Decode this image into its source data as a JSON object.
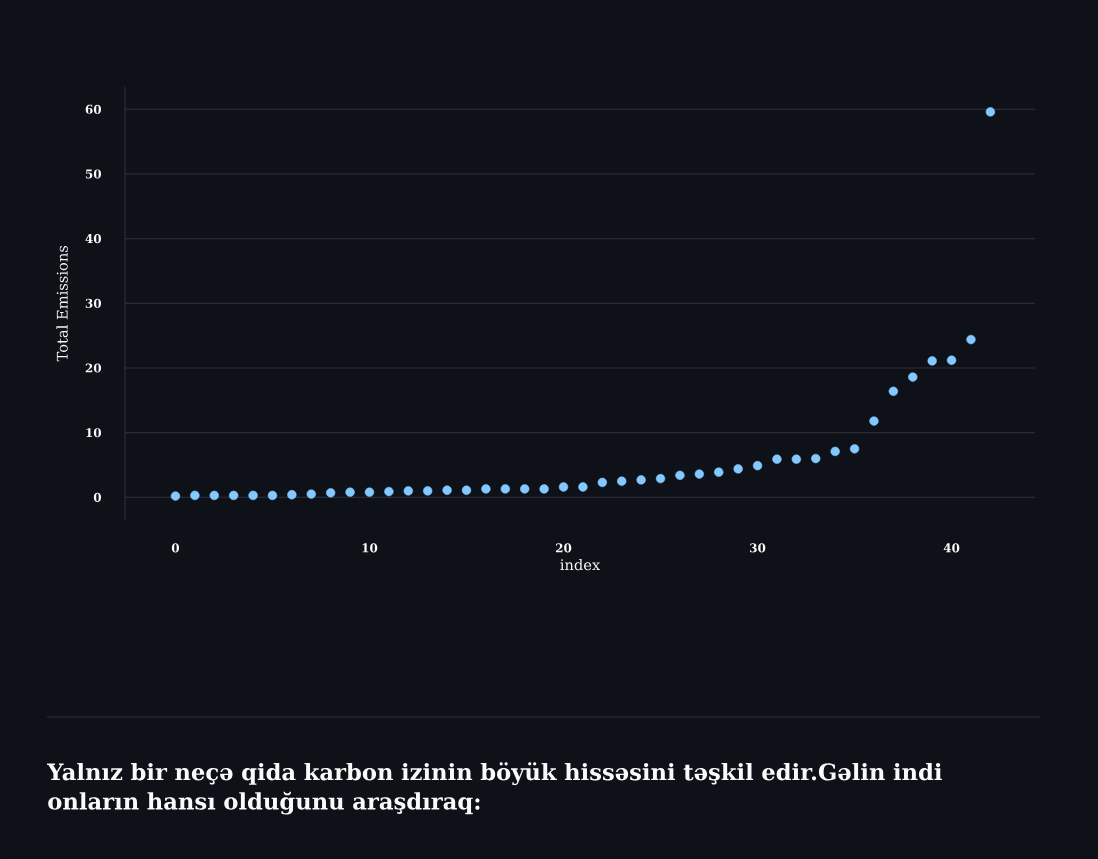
{
  "chart_data": {
    "type": "scatter",
    "xlabel": "index",
    "ylabel": "Total Emissions",
    "annotations": [
      "Yalnız bir neçə qida karbon izinin böyük hissəsini təşkil edir.Gəlin indi onların hansı olduğunu araşdıraq:"
    ],
    "x": [
      0,
      1,
      2,
      3,
      4,
      5,
      6,
      7,
      8,
      9,
      10,
      11,
      12,
      13,
      14,
      15,
      16,
      17,
      18,
      19,
      20,
      21,
      22,
      23,
      24,
      25,
      26,
      27,
      28,
      29,
      30,
      31,
      32,
      33,
      34,
      35,
      36,
      37,
      38,
      39,
      40,
      41,
      42
    ],
    "values": [
      0.2,
      0.3,
      0.3,
      0.3,
      0.3,
      0.3,
      0.4,
      0.5,
      0.7,
      0.8,
      0.8,
      0.9,
      1.0,
      1.0,
      1.1,
      1.1,
      1.3,
      1.3,
      1.3,
      1.3,
      1.6,
      1.6,
      2.3,
      2.5,
      2.7,
      2.9,
      3.4,
      3.6,
      3.9,
      4.4,
      4.9,
      5.9,
      5.9,
      6.0,
      7.1,
      7.5,
      11.8,
      16.4,
      18.6,
      21.1,
      21.2,
      24.4,
      59.6
    ],
    "color": "#83c9ff",
    "marker": "circle",
    "xlim": [
      -2.6,
      44.3
    ],
    "ylim": [
      -3.5,
      63.5
    ],
    "xticks": [
      0,
      10,
      20,
      30,
      40
    ],
    "yticks": [
      0,
      10,
      20,
      30,
      40,
      50,
      60
    ],
    "grid": "y"
  }
}
